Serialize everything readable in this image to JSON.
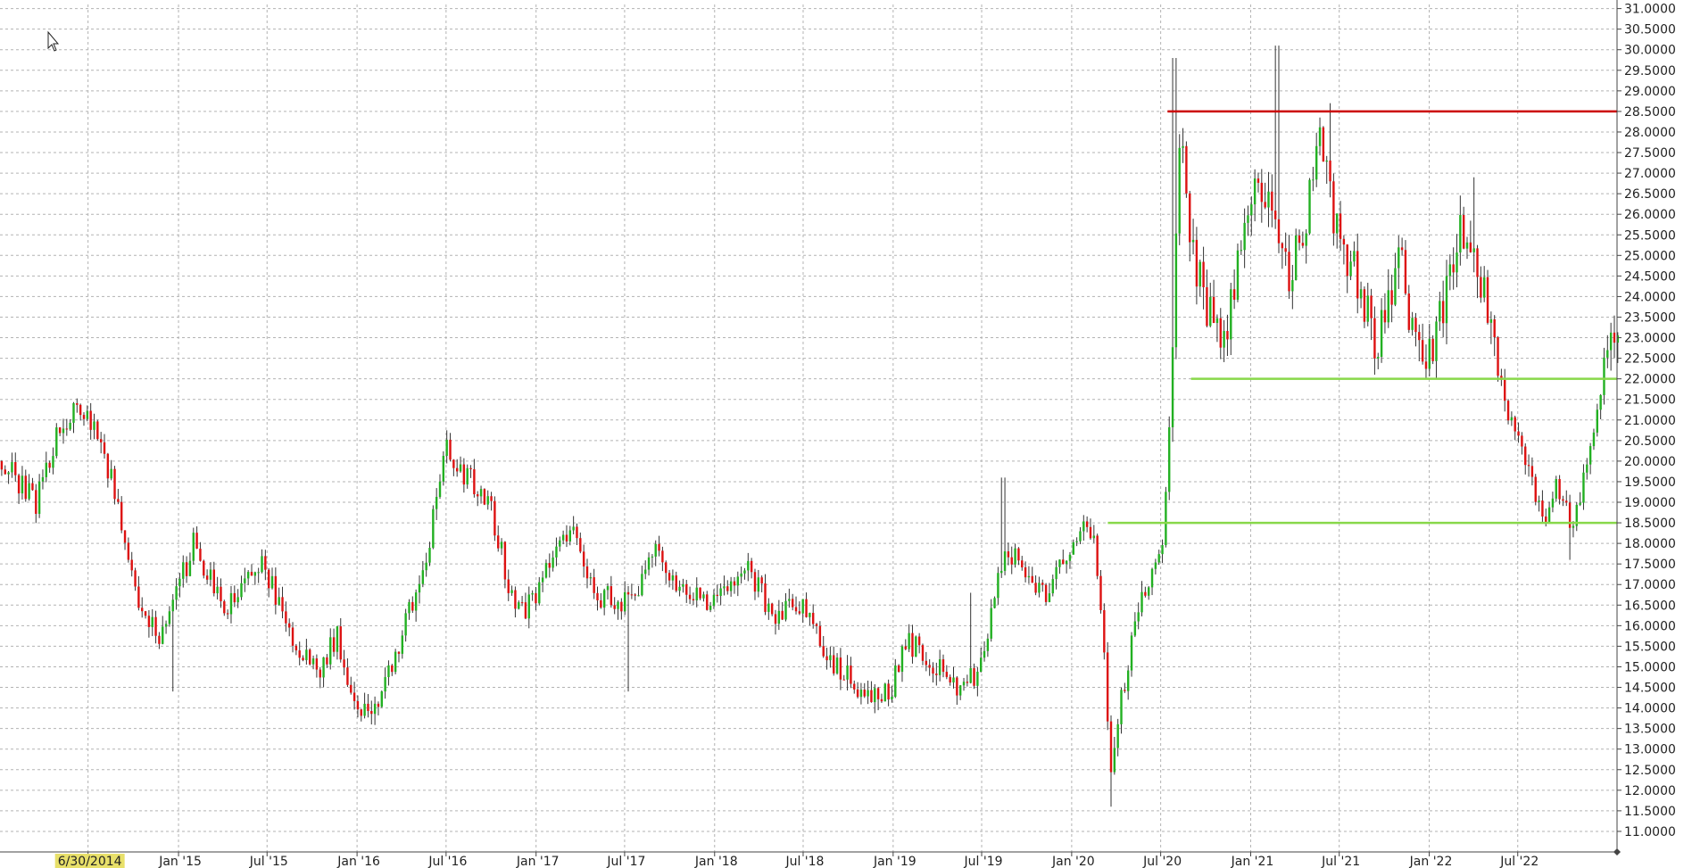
{
  "colors": {
    "up": "#22b022",
    "down": "#dd1111",
    "wick": "#333333",
    "grid": "#b3b3b3",
    "axis": "#444444",
    "resistance": "#cc0000",
    "support": "#88d84a",
    "highlight": "#e8e06a"
  },
  "cursor_icon": "mouse-pointer-icon",
  "chart_data": {
    "type": "candlestick",
    "title": "",
    "xlabel": "",
    "ylabel": "",
    "ylim": [
      10.5,
      31.1
    ],
    "grid": true,
    "y_ticks": [
      "11.0000",
      "11.5000",
      "12.0000",
      "12.5000",
      "13.0000",
      "13.5000",
      "14.0000",
      "14.5000",
      "15.0000",
      "15.5000",
      "16.0000",
      "16.5000",
      "17.0000",
      "17.5000",
      "18.0000",
      "18.5000",
      "19.0000",
      "19.5000",
      "20.0000",
      "20.5000",
      "21.0000",
      "21.5000",
      "22.0000",
      "22.5000",
      "23.0000",
      "23.5000",
      "24.0000",
      "24.5000",
      "25.0000",
      "25.5000",
      "26.0000",
      "26.5000",
      "27.0000",
      "27.5000",
      "28.0000",
      "28.5000",
      "29.0000",
      "29.5000",
      "30.0000",
      "30.5000",
      "31.0000"
    ],
    "x_ticks": [
      "6/30/2014",
      "Jan '15",
      "Jul '15",
      "Jan '16",
      "Jul '16",
      "Jan '17",
      "Jul '17",
      "Jan '18",
      "Jul '18",
      "Jan '19",
      "Jul '19",
      "Jan '20",
      "Jul '20",
      "Jan '21",
      "Jul '21",
      "Jan '22",
      "Jul '22"
    ],
    "x_tick_dates": [
      "2014-06-30",
      "2015-01-01",
      "2015-07-01",
      "2016-01-01",
      "2016-07-01",
      "2017-01-01",
      "2017-07-01",
      "2018-01-01",
      "2018-07-01",
      "2019-01-01",
      "2019-07-01",
      "2020-01-01",
      "2020-07-01",
      "2021-01-01",
      "2021-07-01",
      "2022-01-01",
      "2022-07-01"
    ],
    "x_range": [
      "2014-01-01",
      "2023-01-20"
    ],
    "highlighted_tick": "6/30/2014",
    "horizontal_lines": [
      {
        "price": 28.5,
        "from": "2020-07-15",
        "color": "#cc0000"
      },
      {
        "price": 22.0,
        "from": "2020-09-01",
        "color": "#88d84a"
      },
      {
        "price": 18.5,
        "from": "2020-03-15",
        "color": "#88d84a"
      }
    ],
    "price_path": [
      [
        "2014-01-01",
        20.0
      ],
      [
        "2014-03-15",
        19.0
      ],
      [
        "2014-05-01",
        20.8
      ],
      [
        "2014-06-20",
        21.3
      ],
      [
        "2014-08-01",
        20.3
      ],
      [
        "2014-09-15",
        18.0
      ],
      [
        "2014-10-20",
        16.0
      ],
      [
        "2014-12-01",
        15.8
      ],
      [
        "2015-02-01",
        18.0
      ],
      [
        "2015-04-01",
        16.4
      ],
      [
        "2015-05-20",
        17.0
      ],
      [
        "2015-06-20",
        17.6
      ],
      [
        "2015-08-15",
        15.8
      ],
      [
        "2015-10-15",
        14.8
      ],
      [
        "2015-11-20",
        15.8
      ],
      [
        "2016-01-01",
        14.0
      ],
      [
        "2016-02-10",
        14.0
      ],
      [
        "2016-04-01",
        15.8
      ],
      [
        "2016-05-20",
        17.5
      ],
      [
        "2016-07-01",
        20.3
      ],
      [
        "2016-08-20",
        19.5
      ],
      [
        "2016-10-01",
        18.8
      ],
      [
        "2016-11-10",
        16.8
      ],
      [
        "2016-12-15",
        16.4
      ],
      [
        "2017-02-01",
        17.5
      ],
      [
        "2017-03-15",
        18.5
      ],
      [
        "2017-05-01",
        16.8
      ],
      [
        "2017-07-15",
        16.5
      ],
      [
        "2017-09-01",
        17.8
      ],
      [
        "2017-11-01",
        16.8
      ],
      [
        "2018-01-01",
        16.5
      ],
      [
        "2018-03-01",
        17.5
      ],
      [
        "2018-05-01",
        16.3
      ],
      [
        "2018-07-01",
        16.5
      ],
      [
        "2018-09-01",
        15.0
      ],
      [
        "2018-11-01",
        14.4
      ],
      [
        "2018-12-20",
        14.3
      ],
      [
        "2019-02-01",
        15.6
      ],
      [
        "2019-04-01",
        15.0
      ],
      [
        "2019-05-20",
        14.4
      ],
      [
        "2019-07-01",
        15.0
      ],
      [
        "2019-08-20",
        18.0
      ],
      [
        "2019-10-01",
        17.2
      ],
      [
        "2019-11-15",
        16.8
      ],
      [
        "2020-01-01",
        18.0
      ],
      [
        "2020-02-10",
        18.4
      ],
      [
        "2020-03-01",
        16.5
      ],
      [
        "2020-03-20",
        12.4
      ],
      [
        "2020-04-20",
        14.8
      ],
      [
        "2020-05-20",
        16.5
      ],
      [
        "2020-06-20",
        17.5
      ],
      [
        "2020-07-10",
        18.5
      ],
      [
        "2020-07-25",
        23.0
      ],
      [
        "2020-08-10",
        28.0
      ],
      [
        "2020-09-01",
        25.5
      ],
      [
        "2020-10-01",
        23.5
      ],
      [
        "2020-11-15",
        23.0
      ],
      [
        "2020-12-20",
        26.0
      ],
      [
        "2021-02-01",
        26.8
      ],
      [
        "2021-03-15",
        24.5
      ],
      [
        "2021-04-20",
        25.5
      ],
      [
        "2021-05-25",
        27.8
      ],
      [
        "2021-06-20",
        26.0
      ],
      [
        "2021-08-01",
        24.5
      ],
      [
        "2021-09-20",
        22.8
      ],
      [
        "2021-11-01",
        25.0
      ],
      [
        "2021-12-10",
        22.5
      ],
      [
        "2022-01-15",
        23.0
      ],
      [
        "2022-03-01",
        25.6
      ],
      [
        "2022-04-15",
        24.5
      ],
      [
        "2022-05-20",
        22.0
      ],
      [
        "2022-06-20",
        21.0
      ],
      [
        "2022-07-20",
        20.0
      ],
      [
        "2022-08-20",
        18.5
      ],
      [
        "2022-09-20",
        19.5
      ],
      [
        "2022-10-20",
        18.5
      ],
      [
        "2022-11-20",
        20.0
      ],
      [
        "2022-12-20",
        22.0
      ],
      [
        "2023-01-15",
        23.3
      ]
    ],
    "spikes": [
      {
        "date": "2014-12-15",
        "low": 14.4
      },
      {
        "date": "2017-07-05",
        "low": 14.4
      },
      {
        "date": "2019-06-05",
        "high": 16.8
      },
      {
        "date": "2019-08-10",
        "high": 19.6
      },
      {
        "date": "2020-07-25",
        "high": 29.8
      },
      {
        "date": "2021-02-20",
        "high": 30.1
      },
      {
        "date": "2021-06-10",
        "high": 28.7
      },
      {
        "date": "2022-04-01",
        "high": 26.9
      },
      {
        "date": "2022-10-10",
        "low": 17.6
      },
      {
        "date": "2020-03-20",
        "low": 11.6
      }
    ]
  }
}
